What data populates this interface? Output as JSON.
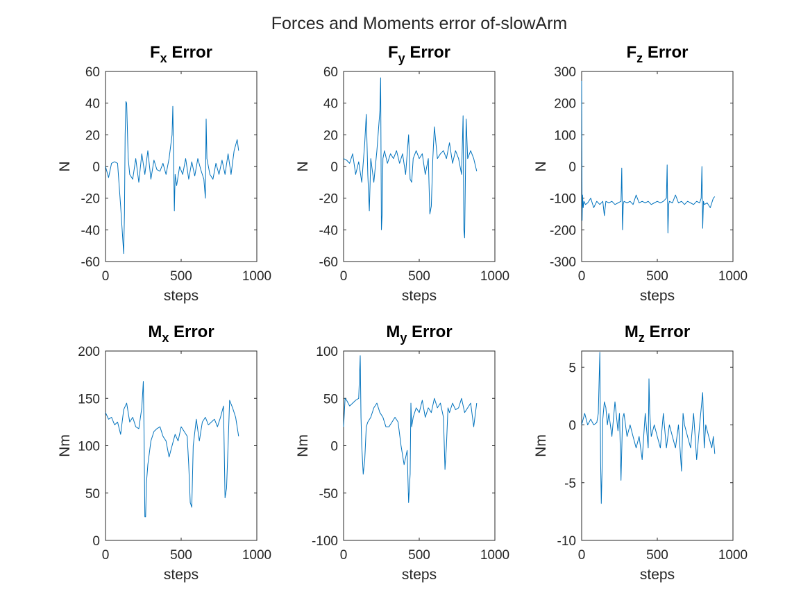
{
  "figure": {
    "title": "Forces and Moments error of-slowArm",
    "line_color": "#0072BD"
  },
  "chart_data": [
    {
      "type": "line",
      "title": "F",
      "title_sub": "x",
      "title_suffix": " Error",
      "xlabel": "steps",
      "ylabel": "N",
      "xlim": [
        0,
        1000
      ],
      "ylim": [
        -60,
        60
      ],
      "xticks": [
        0,
        500,
        1000
      ],
      "yticks": [
        -60,
        -40,
        -20,
        0,
        20,
        40,
        60
      ],
      "series": [
        {
          "x": [
            0,
            20,
            40,
            60,
            80,
            100,
            110,
            120,
            125,
            130,
            135,
            140,
            150,
            160,
            180,
            200,
            220,
            240,
            260,
            280,
            300,
            320,
            340,
            360,
            380,
            400,
            420,
            440,
            445,
            450,
            455,
            460,
            470,
            490,
            510,
            530,
            550,
            570,
            590,
            610,
            630,
            650,
            660,
            665,
            670,
            690,
            710,
            730,
            750,
            770,
            790,
            810,
            830,
            850,
            870,
            880
          ],
          "y": [
            0,
            -7,
            2,
            3,
            2,
            -25,
            -40,
            -55,
            -30,
            20,
            41,
            40,
            5,
            -5,
            -8,
            5,
            -10,
            8,
            -5,
            10,
            -8,
            4,
            -2,
            -3,
            2,
            -5,
            5,
            20,
            38,
            5,
            -28,
            -5,
            -12,
            0,
            -5,
            5,
            -8,
            3,
            -6,
            5,
            -2,
            -8,
            -20,
            30,
            5,
            -5,
            -8,
            2,
            -5,
            4,
            -5,
            8,
            -5,
            10,
            17,
            10
          ]
        }
      ]
    },
    {
      "type": "line",
      "title": "F",
      "title_sub": "y",
      "title_suffix": " Error",
      "xlabel": "steps",
      "ylabel": "N",
      "xlim": [
        0,
        1000
      ],
      "ylim": [
        -60,
        60
      ],
      "xticks": [
        0,
        500,
        1000
      ],
      "yticks": [
        -60,
        -40,
        -20,
        0,
        20,
        40,
        60
      ],
      "series": [
        {
          "x": [
            0,
            20,
            40,
            60,
            80,
            100,
            120,
            140,
            150,
            160,
            170,
            180,
            200,
            220,
            240,
            245,
            250,
            255,
            260,
            270,
            290,
            310,
            330,
            350,
            370,
            390,
            410,
            430,
            440,
            450,
            460,
            480,
            500,
            520,
            540,
            560,
            570,
            580,
            590,
            600,
            620,
            640,
            660,
            680,
            700,
            720,
            740,
            760,
            780,
            790,
            795,
            800,
            810,
            820,
            840,
            860,
            880
          ],
          "y": [
            5,
            4,
            2,
            8,
            -5,
            3,
            -10,
            15,
            33,
            -5,
            -28,
            5,
            -10,
            10,
            35,
            56,
            -40,
            -30,
            5,
            10,
            2,
            8,
            5,
            10,
            2,
            8,
            -5,
            20,
            -8,
            -10,
            5,
            10,
            5,
            8,
            -5,
            5,
            -30,
            -25,
            5,
            25,
            5,
            8,
            10,
            5,
            15,
            2,
            10,
            5,
            -5,
            32,
            -40,
            -45,
            30,
            5,
            10,
            5,
            -3
          ]
        }
      ]
    },
    {
      "type": "line",
      "title": "F",
      "title_sub": "z",
      "title_suffix": " Error",
      "xlabel": "steps",
      "ylabel": "N",
      "xlim": [
        0,
        1000
      ],
      "ylim": [
        -300,
        300
      ],
      "xticks": [
        0,
        500,
        1000
      ],
      "yticks": [
        -300,
        -200,
        -100,
        0,
        100,
        200,
        300
      ],
      "series": [
        {
          "x": [
            0,
            3,
            6,
            10,
            15,
            25,
            40,
            60,
            80,
            100,
            120,
            140,
            150,
            160,
            180,
            200,
            220,
            240,
            260,
            265,
            270,
            275,
            280,
            300,
            320,
            340,
            360,
            380,
            400,
            420,
            440,
            460,
            480,
            500,
            520,
            540,
            560,
            565,
            570,
            575,
            580,
            600,
            620,
            640,
            660,
            680,
            700,
            720,
            740,
            760,
            780,
            790,
            795,
            800,
            805,
            810,
            830,
            850,
            870,
            880
          ],
          "y": [
            270,
            -170,
            -90,
            -130,
            -110,
            -120,
            -115,
            -100,
            -130,
            -110,
            -120,
            -110,
            -155,
            -110,
            -115,
            -110,
            -120,
            -115,
            -110,
            -5,
            -200,
            -120,
            -110,
            -115,
            -110,
            -120,
            -90,
            -115,
            -110,
            -115,
            -110,
            -120,
            -115,
            -110,
            -115,
            -110,
            -100,
            5,
            -210,
            -120,
            -110,
            -115,
            -90,
            -115,
            -110,
            -120,
            -110,
            -115,
            -120,
            -110,
            -115,
            -100,
            0,
            -195,
            -110,
            -120,
            -115,
            -130,
            -100,
            -95
          ]
        }
      ]
    },
    {
      "type": "line",
      "title": "M",
      "title_sub": "x",
      "title_suffix": " Error",
      "xlabel": "steps",
      "ylabel": "Nm",
      "xlim": [
        0,
        1000
      ],
      "ylim": [
        0,
        200
      ],
      "xticks": [
        0,
        500,
        1000
      ],
      "yticks": [
        0,
        50,
        100,
        150,
        200
      ],
      "series": [
        {
          "x": [
            0,
            20,
            40,
            60,
            80,
            100,
            120,
            140,
            160,
            180,
            200,
            220,
            240,
            250,
            255,
            260,
            265,
            270,
            280,
            300,
            320,
            340,
            360,
            380,
            400,
            420,
            440,
            460,
            480,
            500,
            520,
            540,
            550,
            560,
            570,
            580,
            600,
            620,
            640,
            660,
            680,
            700,
            720,
            740,
            760,
            780,
            790,
            800,
            810,
            820,
            840,
            860,
            880
          ],
          "y": [
            135,
            128,
            130,
            122,
            125,
            112,
            138,
            145,
            125,
            130,
            120,
            118,
            140,
            168,
            110,
            25,
            25,
            60,
            80,
            105,
            115,
            118,
            120,
            110,
            105,
            88,
            100,
            112,
            105,
            120,
            115,
            110,
            80,
            40,
            35,
            100,
            128,
            105,
            125,
            130,
            122,
            125,
            128,
            120,
            130,
            142,
            45,
            55,
            100,
            148,
            140,
            130,
            110
          ]
        }
      ]
    },
    {
      "type": "line",
      "title": "M",
      "title_sub": "y",
      "title_suffix": " Error",
      "xlabel": "steps",
      "ylabel": "Nm",
      "xlim": [
        0,
        1000
      ],
      "ylim": [
        -100,
        100
      ],
      "xticks": [
        0,
        500,
        1000
      ],
      "yticks": [
        -100,
        -50,
        0,
        50,
        100
      ],
      "series": [
        {
          "x": [
            0,
            10,
            20,
            40,
            60,
            80,
            100,
            110,
            115,
            120,
            130,
            140,
            150,
            160,
            180,
            200,
            220,
            240,
            260,
            280,
            300,
            320,
            340,
            360,
            380,
            400,
            420,
            430,
            440,
            445,
            450,
            460,
            480,
            500,
            520,
            540,
            560,
            580,
            600,
            620,
            640,
            660,
            670,
            680,
            690,
            700,
            720,
            740,
            760,
            780,
            800,
            820,
            840,
            860,
            880
          ],
          "y": [
            20,
            50,
            48,
            42,
            45,
            48,
            50,
            95,
            30,
            0,
            -30,
            -15,
            20,
            25,
            30,
            40,
            45,
            35,
            30,
            20,
            20,
            25,
            30,
            25,
            0,
            -20,
            -5,
            -60,
            -30,
            45,
            20,
            30,
            40,
            35,
            48,
            30,
            40,
            35,
            50,
            40,
            45,
            30,
            -25,
            0,
            40,
            35,
            45,
            38,
            40,
            50,
            35,
            40,
            45,
            20,
            45
          ]
        }
      ]
    },
    {
      "type": "line",
      "title": "M",
      "title_sub": "z",
      "title_suffix": " Error",
      "xlabel": "steps",
      "ylabel": "Nm",
      "xlim": [
        0,
        1000
      ],
      "ylim": [
        -10,
        6.4
      ],
      "xticks": [
        0,
        500,
        1000
      ],
      "yticks": [
        -10,
        -5,
        0,
        5
      ],
      "series": [
        {
          "x": [
            0,
            20,
            40,
            60,
            80,
            100,
            110,
            120,
            125,
            130,
            135,
            140,
            150,
            160,
            170,
            180,
            200,
            220,
            240,
            250,
            260,
            270,
            280,
            300,
            320,
            340,
            360,
            380,
            400,
            420,
            440,
            445,
            450,
            460,
            480,
            500,
            520,
            540,
            560,
            580,
            600,
            620,
            640,
            660,
            670,
            680,
            700,
            720,
            740,
            760,
            780,
            800,
            810,
            820,
            840,
            860,
            870,
            880
          ],
          "y": [
            0,
            1,
            0,
            0.5,
            0,
            0.2,
            1,
            6.3,
            -3,
            -6.8,
            -4,
            0.5,
            2,
            1.5,
            0,
            1,
            -1,
            2,
            -0.5,
            1,
            -4.8,
            0.5,
            1,
            -1,
            0,
            -1,
            -2,
            -1,
            -3,
            1,
            -2,
            4,
            1,
            -1,
            0,
            -1,
            -2,
            1,
            -2,
            0,
            -1,
            -2,
            0,
            -4,
            1,
            0,
            -1,
            -2,
            1,
            -3,
            0,
            2.8,
            -2,
            0,
            -1,
            -2,
            -1,
            -2.5
          ]
        }
      ]
    }
  ]
}
